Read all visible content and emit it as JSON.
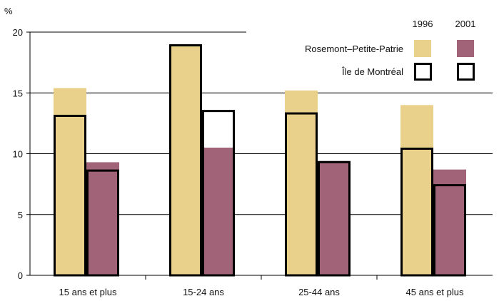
{
  "chart_data": {
    "type": "bar",
    "ylabel": "%",
    "ylim": [
      0,
      20
    ],
    "yticks": [
      0,
      5,
      10,
      15,
      20
    ],
    "categories": [
      "15 ans et plus",
      "15-24 ans",
      "25-44 ans",
      "45 ans et plus"
    ],
    "legend": {
      "years": [
        "1996",
        "2001"
      ],
      "rows": [
        "Rosemont–Petite-Patrie",
        "Île de Montréal"
      ]
    },
    "series": [
      {
        "year": "1996",
        "area": "Rosemont–Petite-Patrie",
        "values": [
          15.4,
          19.0,
          15.2,
          14.0
        ]
      },
      {
        "year": "2001",
        "area": "Rosemont–Petite-Patrie",
        "values": [
          9.3,
          10.5,
          9.3,
          8.7
        ]
      },
      {
        "year": "1996",
        "area": "Île de Montréal",
        "values": [
          13.2,
          19.0,
          13.4,
          10.5
        ]
      },
      {
        "year": "2001",
        "area": "Île de Montréal",
        "values": [
          8.7,
          13.6,
          9.4,
          7.5
        ]
      }
    ],
    "colors": {
      "1996": "#ead18b",
      "2001": "#a06377",
      "outline": "#000000"
    }
  }
}
